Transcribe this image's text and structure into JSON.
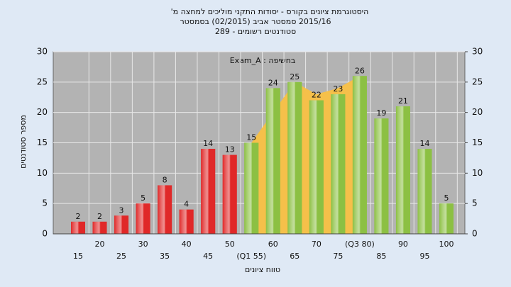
{
  "chart_data": {
    "type": "bar",
    "title": [
      "היסטוגרמת ציונים בקורס - יסודות התקני מוליכים למחצה מ'",
      "2015/16 סמסטר אביב (02/2015) בסמסטר",
      "סטודנטים רשומים - 289"
    ],
    "legend": "בחשיפה : Exam_A",
    "xlabel": "טווח ציונים",
    "ylabel": "מספר סטודנטים",
    "categories": [
      "15",
      "20",
      "25",
      "30",
      "35",
      "40",
      "45",
      "50",
      "(Q1 55)",
      "60",
      "65",
      "70",
      "75",
      "(Q3 80)",
      "85",
      "90",
      "95",
      "100"
    ],
    "values": [
      2,
      2,
      3,
      5,
      8,
      4,
      14,
      13,
      15,
      24,
      25,
      22,
      23,
      26,
      19,
      21,
      14,
      5
    ],
    "colors": [
      "#e02828",
      "#e02828",
      "#e02828",
      "#e02828",
      "#e02828",
      "#e02828",
      "#e02828",
      "#e02828",
      "#8cc043",
      "#8cc043",
      "#8cc043",
      "#8cc043",
      "#8cc043",
      "#8cc043",
      "#8cc043",
      "#8cc043",
      "#8cc043",
      "#8cc043"
    ],
    "area_values": [
      null,
      null,
      null,
      null,
      null,
      null,
      null,
      null,
      15,
      20,
      25,
      23,
      24,
      26,
      null,
      null,
      null,
      null
    ],
    "area_color": "#f5c04a",
    "ylim": [
      0,
      30
    ],
    "yticks": [
      0,
      5,
      10,
      15,
      20,
      25,
      30
    ],
    "y2lim": [
      0,
      30
    ],
    "y2ticks": [
      0,
      5,
      10,
      15,
      20,
      25,
      30
    ],
    "grid": true
  }
}
